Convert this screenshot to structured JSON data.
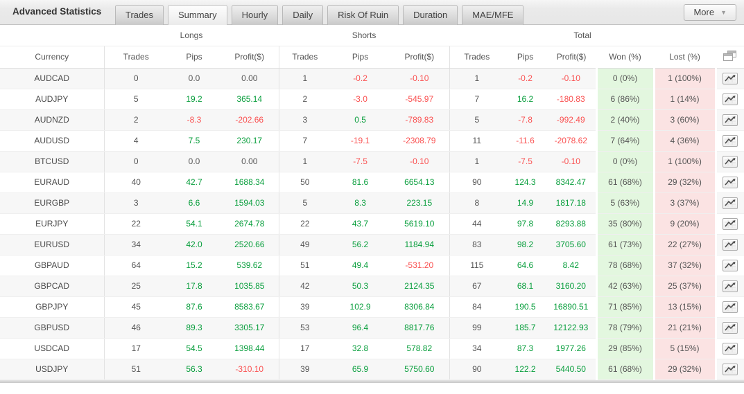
{
  "header": {
    "title": "Advanced Statistics",
    "more_label": "More",
    "more_arrow": "▼"
  },
  "tabs": [
    {
      "label": "Trades",
      "active": false
    },
    {
      "label": "Summary",
      "active": true
    },
    {
      "label": "Hourly",
      "active": false
    },
    {
      "label": "Daily",
      "active": false
    },
    {
      "label": "Risk Of Ruin",
      "active": false
    },
    {
      "label": "Duration",
      "active": false
    },
    {
      "label": "MAE/MFE",
      "active": false
    }
  ],
  "table": {
    "group_headers": {
      "longs": "Longs",
      "shorts": "Shorts",
      "total": "Total"
    },
    "columns": {
      "currency": "Currency",
      "trades": "Trades",
      "pips": "Pips",
      "profit": "Profit($)",
      "won": "Won (%)",
      "lost": "Lost (%)"
    },
    "rows": [
      {
        "currency": "AUDCAD",
        "longs": [
          "0",
          "0.0",
          "0.00"
        ],
        "shorts": [
          "1",
          "-0.2",
          "-0.10"
        ],
        "total": [
          "1",
          "-0.2",
          "-0.10"
        ],
        "won": "0 (0%)",
        "lost": "1 (100%)"
      },
      {
        "currency": "AUDJPY",
        "longs": [
          "5",
          "19.2",
          "365.14"
        ],
        "shorts": [
          "2",
          "-3.0",
          "-545.97"
        ],
        "total": [
          "7",
          "16.2",
          "-180.83"
        ],
        "won": "6 (86%)",
        "lost": "1 (14%)"
      },
      {
        "currency": "AUDNZD",
        "longs": [
          "2",
          "-8.3",
          "-202.66"
        ],
        "shorts": [
          "3",
          "0.5",
          "-789.83"
        ],
        "total": [
          "5",
          "-7.8",
          "-992.49"
        ],
        "won": "2 (40%)",
        "lost": "3 (60%)"
      },
      {
        "currency": "AUDUSD",
        "longs": [
          "4",
          "7.5",
          "230.17"
        ],
        "shorts": [
          "7",
          "-19.1",
          "-2308.79"
        ],
        "total": [
          "11",
          "-11.6",
          "-2078.62"
        ],
        "won": "7 (64%)",
        "lost": "4 (36%)"
      },
      {
        "currency": "BTCUSD",
        "longs": [
          "0",
          "0.0",
          "0.00"
        ],
        "shorts": [
          "1",
          "-7.5",
          "-0.10"
        ],
        "total": [
          "1",
          "-7.5",
          "-0.10"
        ],
        "won": "0 (0%)",
        "lost": "1 (100%)"
      },
      {
        "currency": "EURAUD",
        "longs": [
          "40",
          "42.7",
          "1688.34"
        ],
        "shorts": [
          "50",
          "81.6",
          "6654.13"
        ],
        "total": [
          "90",
          "124.3",
          "8342.47"
        ],
        "won": "61 (68%)",
        "lost": "29 (32%)"
      },
      {
        "currency": "EURGBP",
        "longs": [
          "3",
          "6.6",
          "1594.03"
        ],
        "shorts": [
          "5",
          "8.3",
          "223.15"
        ],
        "total": [
          "8",
          "14.9",
          "1817.18"
        ],
        "won": "5 (63%)",
        "lost": "3 (37%)"
      },
      {
        "currency": "EURJPY",
        "longs": [
          "22",
          "54.1",
          "2674.78"
        ],
        "shorts": [
          "22",
          "43.7",
          "5619.10"
        ],
        "total": [
          "44",
          "97.8",
          "8293.88"
        ],
        "won": "35 (80%)",
        "lost": "9 (20%)"
      },
      {
        "currency": "EURUSD",
        "longs": [
          "34",
          "42.0",
          "2520.66"
        ],
        "shorts": [
          "49",
          "56.2",
          "1184.94"
        ],
        "total": [
          "83",
          "98.2",
          "3705.60"
        ],
        "won": "61 (73%)",
        "lost": "22 (27%)"
      },
      {
        "currency": "GBPAUD",
        "longs": [
          "64",
          "15.2",
          "539.62"
        ],
        "shorts": [
          "51",
          "49.4",
          "-531.20"
        ],
        "total": [
          "115",
          "64.6",
          "8.42"
        ],
        "won": "78 (68%)",
        "lost": "37 (32%)"
      },
      {
        "currency": "GBPCAD",
        "longs": [
          "25",
          "17.8",
          "1035.85"
        ],
        "shorts": [
          "42",
          "50.3",
          "2124.35"
        ],
        "total": [
          "67",
          "68.1",
          "3160.20"
        ],
        "won": "42 (63%)",
        "lost": "25 (37%)"
      },
      {
        "currency": "GBPJPY",
        "longs": [
          "45",
          "87.6",
          "8583.67"
        ],
        "shorts": [
          "39",
          "102.9",
          "8306.84"
        ],
        "total": [
          "84",
          "190.5",
          "16890.51"
        ],
        "won": "71 (85%)",
        "lost": "13 (15%)"
      },
      {
        "currency": "GBPUSD",
        "longs": [
          "46",
          "89.3",
          "3305.17"
        ],
        "shorts": [
          "53",
          "96.4",
          "8817.76"
        ],
        "total": [
          "99",
          "185.7",
          "12122.93"
        ],
        "won": "78 (79%)",
        "lost": "21 (21%)"
      },
      {
        "currency": "USDCAD",
        "longs": [
          "17",
          "54.5",
          "1398.44"
        ],
        "shorts": [
          "17",
          "32.8",
          "578.82"
        ],
        "total": [
          "34",
          "87.3",
          "1977.26"
        ],
        "won": "29 (85%)",
        "lost": "5 (15%)"
      },
      {
        "currency": "USDJPY",
        "longs": [
          "51",
          "56.3",
          "-310.10"
        ],
        "shorts": [
          "39",
          "65.9",
          "5750.60"
        ],
        "total": [
          "90",
          "122.2",
          "5440.50"
        ],
        "won": "61 (68%)",
        "lost": "29 (32%)"
      }
    ]
  },
  "icons": {
    "row_chart": "line-chart",
    "header_export": "cascade-windows",
    "more_arrow": "chevron-down"
  },
  "colors": {
    "positive": "#089e3c",
    "negative": "#fa5151",
    "won_bg": "#e3f7df",
    "lost_bg": "#fbe3e3"
  }
}
